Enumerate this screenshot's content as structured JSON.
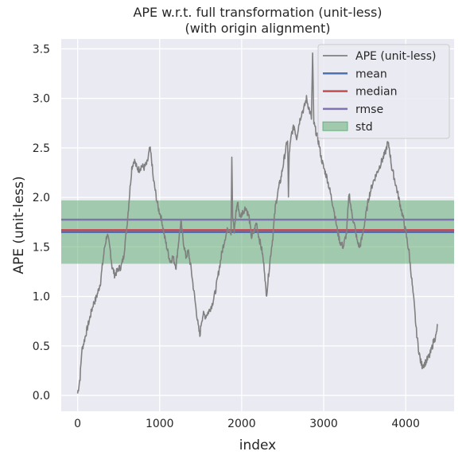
{
  "chart_data": {
    "type": "line",
    "title": "APE w.r.t. full transformation (unit-less)",
    "subtitle": "(with origin alignment)",
    "xlabel": "index",
    "ylabel": "APE (unit-less)",
    "xlim": [
      -200,
      4590
    ],
    "ylim": [
      -0.16,
      3.6
    ],
    "xticks": [
      0,
      1000,
      2000,
      3000,
      4000
    ],
    "yticks": [
      0.0,
      0.5,
      1.0,
      1.5,
      2.0,
      2.5,
      3.0,
      3.5
    ],
    "xtick_labels": [
      "0",
      "1000",
      "2000",
      "3000",
      "4000"
    ],
    "ytick_labels": [
      "0.0",
      "0.5",
      "1.0",
      "1.5",
      "2.0",
      "2.5",
      "3.0",
      "3.5"
    ],
    "grid": true,
    "legend_position": "top-right",
    "series": [
      {
        "name": "APE (unit-less)",
        "color": "#808080",
        "points": [
          [
            0,
            0.02
          ],
          [
            30,
            0.18
          ],
          [
            50,
            0.45
          ],
          [
            80,
            0.55
          ],
          [
            100,
            0.62
          ],
          [
            130,
            0.72
          ],
          [
            160,
            0.82
          ],
          [
            190,
            0.92
          ],
          [
            220,
            0.97
          ],
          [
            250,
            1.05
          ],
          [
            280,
            1.15
          ],
          [
            300,
            1.3
          ],
          [
            330,
            1.5
          ],
          [
            360,
            1.63
          ],
          [
            380,
            1.55
          ],
          [
            400,
            1.45
          ],
          [
            420,
            1.3
          ],
          [
            450,
            1.22
          ],
          [
            480,
            1.25
          ],
          [
            500,
            1.28
          ],
          [
            530,
            1.3
          ],
          [
            560,
            1.4
          ],
          [
            600,
            1.7
          ],
          [
            630,
            2.0
          ],
          [
            660,
            2.3
          ],
          [
            690,
            2.38
          ],
          [
            720,
            2.3
          ],
          [
            750,
            2.28
          ],
          [
            780,
            2.32
          ],
          [
            810,
            2.3
          ],
          [
            850,
            2.35
          ],
          [
            880,
            2.5
          ],
          [
            900,
            2.4
          ],
          [
            920,
            2.2
          ],
          [
            950,
            2.05
          ],
          [
            980,
            1.9
          ],
          [
            1000,
            1.85
          ],
          [
            1030,
            1.75
          ],
          [
            1060,
            1.6
          ],
          [
            1100,
            1.45
          ],
          [
            1130,
            1.35
          ],
          [
            1160,
            1.4
          ],
          [
            1200,
            1.3
          ],
          [
            1230,
            1.55
          ],
          [
            1260,
            1.75
          ],
          [
            1290,
            1.55
          ],
          [
            1320,
            1.4
          ],
          [
            1350,
            1.45
          ],
          [
            1380,
            1.3
          ],
          [
            1410,
            1.1
          ],
          [
            1440,
            0.9
          ],
          [
            1470,
            0.7
          ],
          [
            1490,
            0.6
          ],
          [
            1510,
            0.75
          ],
          [
            1530,
            0.82
          ],
          [
            1560,
            0.8
          ],
          [
            1600,
            0.85
          ],
          [
            1640,
            0.92
          ],
          [
            1680,
            1.05
          ],
          [
            1720,
            1.25
          ],
          [
            1760,
            1.45
          ],
          [
            1800,
            1.6
          ],
          [
            1840,
            1.7
          ],
          [
            1870,
            1.65
          ],
          [
            1880,
            2.42
          ],
          [
            1890,
            1.8
          ],
          [
            1910,
            1.65
          ],
          [
            1930,
            1.85
          ],
          [
            1950,
            1.95
          ],
          [
            1980,
            1.8
          ],
          [
            2010,
            1.85
          ],
          [
            2050,
            1.9
          ],
          [
            2090,
            1.8
          ],
          [
            2120,
            1.6
          ],
          [
            2150,
            1.65
          ],
          [
            2180,
            1.75
          ],
          [
            2210,
            1.6
          ],
          [
            2250,
            1.45
          ],
          [
            2280,
            1.25
          ],
          [
            2300,
            1.0
          ],
          [
            2320,
            1.15
          ],
          [
            2350,
            1.4
          ],
          [
            2380,
            1.6
          ],
          [
            2410,
            1.9
          ],
          [
            2440,
            2.05
          ],
          [
            2480,
            2.2
          ],
          [
            2510,
            2.35
          ],
          [
            2540,
            2.5
          ],
          [
            2560,
            2.58
          ],
          [
            2570,
            2.0
          ],
          [
            2580,
            2.45
          ],
          [
            2610,
            2.65
          ],
          [
            2640,
            2.72
          ],
          [
            2670,
            2.6
          ],
          [
            2700,
            2.75
          ],
          [
            2730,
            2.85
          ],
          [
            2760,
            2.9
          ],
          [
            2790,
            3.0
          ],
          [
            2820,
            2.9
          ],
          [
            2850,
            2.8
          ],
          [
            2865,
            3.44
          ],
          [
            2880,
            2.75
          ],
          [
            2910,
            2.65
          ],
          [
            2940,
            2.55
          ],
          [
            2970,
            2.4
          ],
          [
            3000,
            2.3
          ],
          [
            3040,
            2.2
          ],
          [
            3080,
            2.05
          ],
          [
            3120,
            1.9
          ],
          [
            3150,
            1.75
          ],
          [
            3170,
            1.65
          ],
          [
            3200,
            1.55
          ],
          [
            3240,
            1.5
          ],
          [
            3280,
            1.65
          ],
          [
            3310,
            2.05
          ],
          [
            3340,
            1.85
          ],
          [
            3380,
            1.7
          ],
          [
            3410,
            1.55
          ],
          [
            3440,
            1.5
          ],
          [
            3470,
            1.6
          ],
          [
            3510,
            1.8
          ],
          [
            3550,
            2.0
          ],
          [
            3600,
            2.15
          ],
          [
            3650,
            2.25
          ],
          [
            3700,
            2.35
          ],
          [
            3750,
            2.45
          ],
          [
            3780,
            2.55
          ],
          [
            3800,
            2.5
          ],
          [
            3830,
            2.3
          ],
          [
            3860,
            2.2
          ],
          [
            3900,
            2.05
          ],
          [
            3940,
            1.9
          ],
          [
            3980,
            1.75
          ],
          [
            4010,
            1.6
          ],
          [
            4040,
            1.45
          ],
          [
            4070,
            1.2
          ],
          [
            4100,
            0.95
          ],
          [
            4130,
            0.65
          ],
          [
            4160,
            0.45
          ],
          [
            4180,
            0.35
          ],
          [
            4200,
            0.3
          ],
          [
            4230,
            0.32
          ],
          [
            4260,
            0.36
          ],
          [
            4290,
            0.4
          ],
          [
            4310,
            0.45
          ],
          [
            4340,
            0.55
          ],
          [
            4370,
            0.6
          ],
          [
            4390,
            0.72
          ]
        ]
      },
      {
        "name": "mean",
        "color": "#4c72b0",
        "value": 1.65
      },
      {
        "name": "median",
        "color": "#c44e52",
        "value": 1.67
      },
      {
        "name": "rmse",
        "color": "#8172b2",
        "value": 1.775
      },
      {
        "name": "std",
        "color": "#55a868",
        "band": [
          1.33,
          1.97
        ]
      }
    ]
  }
}
